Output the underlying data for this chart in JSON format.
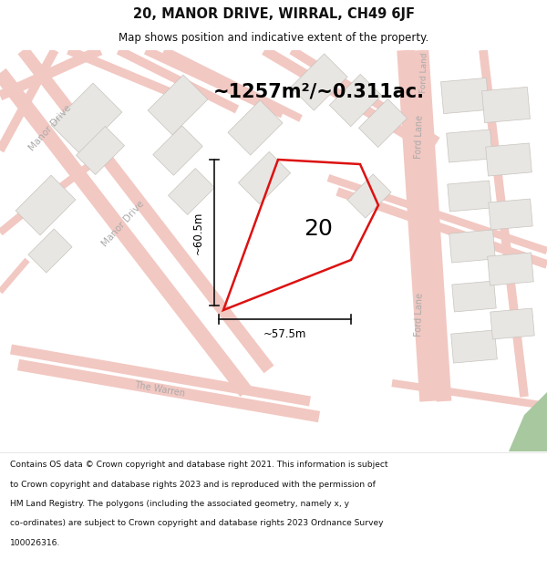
{
  "title": "20, MANOR DRIVE, WIRRAL, CH49 6JF",
  "subtitle": "Map shows position and indicative extent of the property.",
  "area_text": "~1257m²/~0.311ac.",
  "plot_number": "20",
  "dim_width": "~57.5m",
  "dim_height": "~60.5m",
  "map_bg": "#f8f6f4",
  "road_color": "#f2c8c2",
  "building_fill": "#e8e6e3",
  "building_stroke": "#c8c4be",
  "plot_stroke": "#dd1111",
  "green_patch_color": "#a8c8a0",
  "footer_lines": [
    "Contains OS data © Crown copyright and database right 2021. This information is subject",
    "to Crown copyright and database rights 2023 and is reproduced with the permission of",
    "HM Land Registry. The polygons (including the associated geometry, namely x, y",
    "co-ordinates) are subject to Crown copyright and database rights 2023 Ordnance Survey",
    "100026316."
  ],
  "road_label_color": "#aaaaaa",
  "dim_line_color": "#111111",
  "text_color": "#111111"
}
